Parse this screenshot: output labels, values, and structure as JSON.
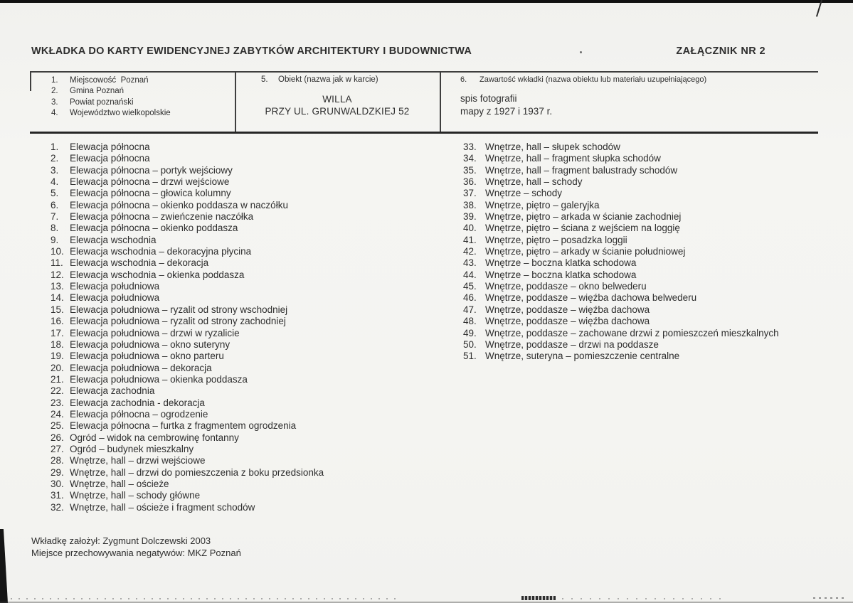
{
  "header": {
    "title": "WKŁADKA DO KARTY EWIDENCYJNEJ ZABYTKÓW ARCHITEKTURY I BUDOWNICTWA",
    "annex": "ZAŁĄCZNIK NR 2"
  },
  "form": {
    "location_items": [
      {
        "no": "1.",
        "text": "Miejscowość  Poznań"
      },
      {
        "no": "2.",
        "text": "Gmina Poznań"
      },
      {
        "no": "3.",
        "text": "Powiat poznański"
      },
      {
        "no": "4.",
        "text": "Województwo wielkopolskie"
      }
    ],
    "object": {
      "no": "5.",
      "label": "Obiekt (nazwa jak w karcie)",
      "line1": "WILLA",
      "line2": "PRZY UL. GRUNWALDZKIEJ 52"
    },
    "contents": {
      "no": "6.",
      "label": "Zawartość wkładki (nazwa obiektu lub materiału uzupełniającego)",
      "line1": "spis fotografii",
      "line2": "mapy z 1927 i 1937 r."
    }
  },
  "photo_list": {
    "left": [
      {
        "no": "1.",
        "text": "Elewacja północna"
      },
      {
        "no": "2.",
        "text": "Elewacja północna"
      },
      {
        "no": "3.",
        "text": "Elewacja północna – portyk wejściowy"
      },
      {
        "no": "4.",
        "text": "Elewacja północna – drzwi wejściowe"
      },
      {
        "no": "5.",
        "text": "Elewacja północna – głowica kolumny"
      },
      {
        "no": "6.",
        "text": "Elewacja północna – okienko poddasza w naczółku"
      },
      {
        "no": "7.",
        "text": "Elewacja północna – zwieńczenie naczółka"
      },
      {
        "no": "8.",
        "text": "Elewacja północna – okienko poddasza"
      },
      {
        "no": "9.",
        "text": "Elewacja wschodnia"
      },
      {
        "no": "10.",
        "text": "Elewacja wschodnia – dekoracyjna płycina"
      },
      {
        "no": "11.",
        "text": "Elewacja wschodnia – dekoracja"
      },
      {
        "no": "12.",
        "text": "Elewacja wschodnia – okienka poddasza"
      },
      {
        "no": "13.",
        "text": "Elewacja południowa"
      },
      {
        "no": "14.",
        "text": "Elewacja południowa"
      },
      {
        "no": "15.",
        "text": "Elewacja południowa – ryzalit od strony wschodniej"
      },
      {
        "no": "16.",
        "text": "Elewacja południowa – ryzalit od strony zachodniej"
      },
      {
        "no": "17.",
        "text": "Elewacja południowa – drzwi w ryzalicie"
      },
      {
        "no": "18.",
        "text": "Elewacja południowa – okno suteryny"
      },
      {
        "no": "19.",
        "text": "Elewacja południowa – okno parteru"
      },
      {
        "no": "20.",
        "text": "Elewacja południowa – dekoracja"
      },
      {
        "no": "21.",
        "text": "Elewacja południowa – okienka poddasza"
      },
      {
        "no": "22.",
        "text": "Elewacja zachodnia"
      },
      {
        "no": "23.",
        "text": "Elewacja zachodnia - dekoracja"
      },
      {
        "no": "24.",
        "text": "Elewacja północna – ogrodzenie"
      },
      {
        "no": "25.",
        "text": "Elewacja północna – furtka z fragmentem ogrodzenia"
      },
      {
        "no": "26.",
        "text": "Ogród – widok na cembrowinę fontanny"
      },
      {
        "no": "27.",
        "text": "Ogród – budynek mieszkalny"
      },
      {
        "no": "28.",
        "text": "Wnętrze, hall – drzwi wejściowe"
      },
      {
        "no": "29.",
        "text": "Wnętrze, hall – drzwi do pomieszczenia z boku przedsionka"
      },
      {
        "no": "30.",
        "text": "Wnętrze, hall – ościeże"
      },
      {
        "no": "31.",
        "text": "Wnętrze, hall – schody główne"
      },
      {
        "no": "32.",
        "text": "Wnętrze, hall – ościeże i fragment schodów"
      }
    ],
    "right": [
      {
        "no": "33.",
        "text": "Wnętrze, hall – słupek schodów"
      },
      {
        "no": "34.",
        "text": "Wnętrze, hall – fragment słupka schodów"
      },
      {
        "no": "35.",
        "text": "Wnętrze, hall – fragment balustrady schodów"
      },
      {
        "no": "36.",
        "text": "Wnętrze, hall – schody"
      },
      {
        "no": "37.",
        "text": "Wnętrze – schody"
      },
      {
        "no": "38.",
        "text": "Wnętrze, piętro – galeryjka"
      },
      {
        "no": "39.",
        "text": "Wnętrze, piętro – arkada w ścianie zachodniej"
      },
      {
        "no": "40.",
        "text": "Wnętrze, piętro – ściana z wejściem na loggię"
      },
      {
        "no": "41.",
        "text": "Wnętrze, piętro – posadzka loggii"
      },
      {
        "no": "42.",
        "text": "Wnętrze, piętro – arkady w ścianie południowej"
      },
      {
        "no": "43.",
        "text": "Wnętrze – boczna klatka schodowa"
      },
      {
        "no": "44.",
        "text": "Wnętrze – boczna klatka schodowa"
      },
      {
        "no": "45.",
        "text": "Wnętrze, poddasze – okno belwederu"
      },
      {
        "no": "46.",
        "text": "Wnętrze, poddasze – więźba dachowa belwederu"
      },
      {
        "no": "47.",
        "text": "Wnętrze, poddasze – więźba dachowa"
      },
      {
        "no": "48.",
        "text": "Wnętrze, poddasze – więźba dachowa"
      },
      {
        "no": "49.",
        "text": "Wnętrze, poddasze – zachowane drzwi z pomieszczeń mieszkalnych"
      },
      {
        "no": "50.",
        "text": "Wnętrze, poddasze – drzwi na poddasze"
      },
      {
        "no": "51.",
        "text": "Wnętrze, suteryna – pomieszczenie centralne"
      }
    ]
  },
  "footer": {
    "line1": "Wkładkę założył: Zygmunt Dolczewski 2003",
    "line2": "Miejsce przechowywania negatywów: MKZ Poznań"
  },
  "colors": {
    "paper": "#f4f4f1",
    "ink": "#2e2e2e",
    "rule": "#3e3e3e"
  }
}
